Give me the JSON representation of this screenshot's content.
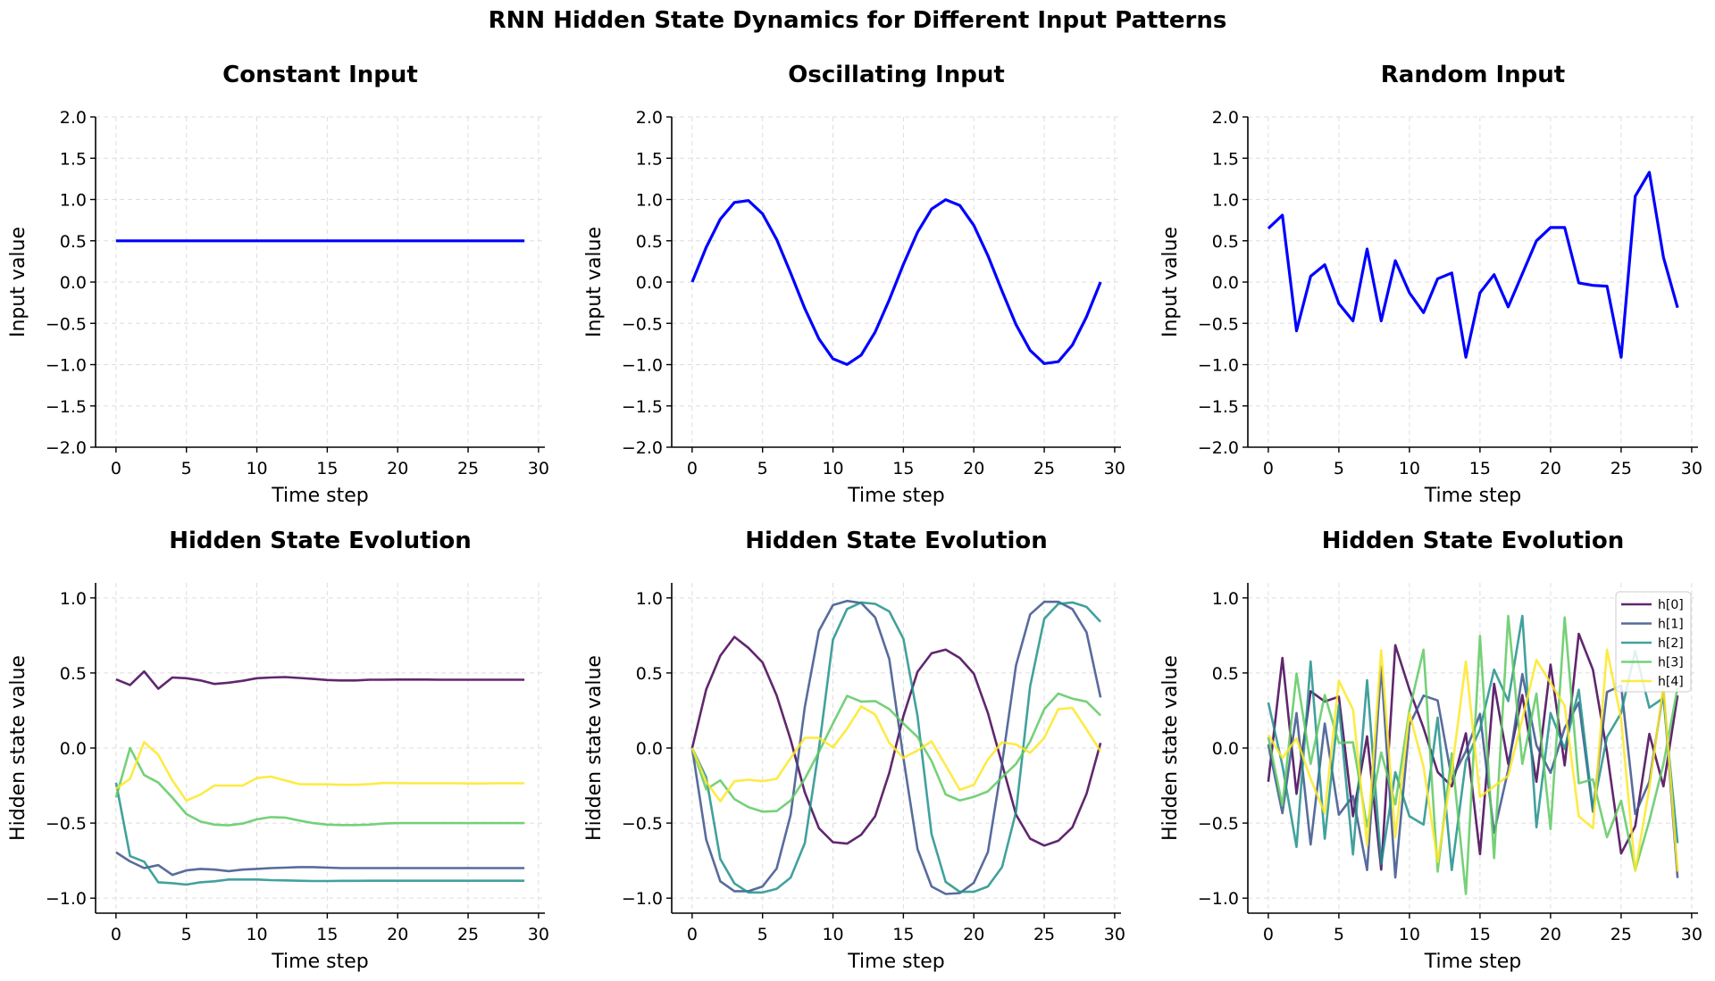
{
  "figure": {
    "title": "RNN Hidden State Dynamics for Different Input Patterns"
  },
  "colors": {
    "input_line": "#0000ff",
    "hidden": [
      "#440154",
      "#3b528b",
      "#21918c",
      "#5ec962",
      "#fde725"
    ],
    "grid": "#dddddd"
  },
  "chart_data": [
    {
      "type": "line",
      "title": "Constant Input",
      "xlabel": "Time step",
      "ylabel": "Input value",
      "xlim": [
        -1.45,
        30.45
      ],
      "ylim": [
        -2,
        2
      ],
      "xticks": [
        0,
        5,
        10,
        15,
        20,
        25,
        30
      ],
      "yticks": [
        2.0,
        1.5,
        1.0,
        0.5,
        0.0,
        -0.5,
        -1.0,
        -1.5,
        -2.0
      ],
      "grid": true,
      "series": [
        {
          "values": [
            0.5,
            0.5,
            0.5,
            0.5,
            0.5,
            0.5,
            0.5,
            0.5,
            0.5,
            0.5,
            0.5,
            0.5,
            0.5,
            0.5,
            0.5,
            0.5,
            0.5,
            0.5,
            0.5,
            0.5,
            0.5,
            0.5,
            0.5,
            0.5,
            0.5,
            0.5,
            0.5,
            0.5,
            0.5,
            0.5
          ]
        }
      ]
    },
    {
      "type": "line",
      "title": "Oscillating Input",
      "xlabel": "Time step",
      "ylabel": "Input value",
      "xlim": [
        -1.45,
        30.45
      ],
      "ylim": [
        -2,
        2
      ],
      "xticks": [
        0,
        5,
        10,
        15,
        20,
        25,
        30
      ],
      "yticks": [
        2.0,
        1.5,
        1.0,
        0.5,
        0.0,
        -0.5,
        -1.0,
        -1.5,
        -2.0
      ],
      "grid": true,
      "series": [
        {
          "values": [
            0,
            0.42,
            0.762,
            0.964,
            0.987,
            0.827,
            0.516,
            0.108,
            -0.32,
            -0.688,
            -0.929,
            -0.998,
            -0.884,
            -0.604,
            -0.215,
            0.215,
            0.604,
            0.884,
            0.998,
            0.929,
            0.688,
            0.32,
            -0.108,
            -0.516,
            -0.827,
            -0.987,
            -0.964,
            -0.762,
            -0.42,
            0
          ]
        }
      ]
    },
    {
      "type": "line",
      "title": "Random Input",
      "xlabel": "Time step",
      "ylabel": "Input value",
      "xlim": [
        -1.45,
        30.45
      ],
      "ylim": [
        -2,
        2
      ],
      "xticks": [
        0,
        5,
        10,
        15,
        20,
        25,
        30
      ],
      "yticks": [
        2.0,
        1.5,
        1.0,
        0.5,
        0.0,
        -0.5,
        -1.0,
        -1.5,
        -2.0
      ],
      "grid": true,
      "series": [
        {
          "values": [
            0.65,
            0.81,
            -0.59,
            0.07,
            0.21,
            -0.26,
            -0.47,
            0.4,
            -0.47,
            0.26,
            -0.13,
            -0.37,
            0.04,
            0.11,
            -0.91,
            -0.13,
            0.09,
            -0.3,
            0.1,
            0.5,
            0.66,
            0.66,
            -0.01,
            -0.04,
            -0.05,
            -0.91,
            1.04,
            1.33,
            0.3,
            -0.31
          ]
        }
      ]
    },
    {
      "type": "line",
      "title": "Hidden State Evolution",
      "xlabel": "Time step",
      "ylabel": "Hidden state value",
      "xlim": [
        -1.45,
        30.45
      ],
      "ylim": [
        -1.1,
        1.1
      ],
      "xticks": [
        0,
        5,
        10,
        15,
        20,
        25,
        30
      ],
      "yticks": [
        1.0,
        0.5,
        0.0,
        -0.5,
        -1.0
      ],
      "grid": true,
      "series": [
        {
          "values": [
            0.457,
            0.42,
            0.51,
            0.395,
            0.47,
            0.465,
            0.45,
            0.427,
            0.435,
            0.448,
            0.465,
            0.47,
            0.473,
            0.467,
            0.46,
            0.453,
            0.45,
            0.45,
            0.455,
            0.455,
            0.456,
            0.456,
            0.456,
            0.455,
            0.455,
            0.455,
            0.455,
            0.455,
            0.455,
            0.455
          ]
        },
        {
          "values": [
            -0.695,
            -0.755,
            -0.8,
            -0.78,
            -0.845,
            -0.815,
            -0.805,
            -0.81,
            -0.82,
            -0.81,
            -0.805,
            -0.8,
            -0.797,
            -0.793,
            -0.793,
            -0.797,
            -0.8,
            -0.8,
            -0.8,
            -0.8,
            -0.8,
            -0.8,
            -0.8,
            -0.8,
            -0.8,
            -0.8,
            -0.8,
            -0.8,
            -0.8,
            -0.8
          ]
        },
        {
          "values": [
            -0.23,
            -0.72,
            -0.757,
            -0.894,
            -0.9,
            -0.91,
            -0.894,
            -0.888,
            -0.876,
            -0.876,
            -0.876,
            -0.88,
            -0.882,
            -0.884,
            -0.886,
            -0.886,
            -0.885,
            -0.885,
            -0.884,
            -0.884,
            -0.884,
            -0.884,
            -0.884,
            -0.884,
            -0.884,
            -0.884,
            -0.884,
            -0.884,
            -0.884,
            -0.884
          ]
        },
        {
          "values": [
            -0.33,
            0.0,
            -0.18,
            -0.23,
            -0.33,
            -0.44,
            -0.49,
            -0.51,
            -0.515,
            -0.503,
            -0.475,
            -0.46,
            -0.463,
            -0.483,
            -0.5,
            -0.51,
            -0.513,
            -0.513,
            -0.51,
            -0.503,
            -0.5,
            -0.5,
            -0.5,
            -0.5,
            -0.5,
            -0.5,
            -0.5,
            -0.5,
            -0.5,
            -0.5
          ]
        },
        {
          "values": [
            -0.27,
            -0.205,
            0.04,
            -0.045,
            -0.215,
            -0.35,
            -0.31,
            -0.25,
            -0.25,
            -0.25,
            -0.2,
            -0.19,
            -0.215,
            -0.24,
            -0.242,
            -0.242,
            -0.245,
            -0.245,
            -0.24,
            -0.233,
            -0.233,
            -0.235,
            -0.235,
            -0.235,
            -0.235,
            -0.236,
            -0.236,
            -0.235,
            -0.235,
            -0.235
          ]
        }
      ]
    },
    {
      "type": "line",
      "title": "Hidden State Evolution",
      "xlabel": "Time step",
      "ylabel": "Hidden state value",
      "xlim": [
        -1.45,
        30.45
      ],
      "ylim": [
        -1.1,
        1.1
      ],
      "xticks": [
        0,
        5,
        10,
        15,
        20,
        25,
        30
      ],
      "yticks": [
        1.0,
        0.5,
        0.0,
        -0.5,
        -1.0
      ],
      "grid": true,
      "series": [
        {
          "values": [
            0,
            0.39,
            0.615,
            0.74,
            0.667,
            0.57,
            0.35,
            0.054,
            -0.295,
            -0.534,
            -0.627,
            -0.637,
            -0.578,
            -0.454,
            -0.165,
            0.213,
            0.508,
            0.631,
            0.655,
            0.6,
            0.496,
            0.233,
            -0.106,
            -0.444,
            -0.604,
            -0.65,
            -0.618,
            -0.528,
            -0.305,
            0.034
          ]
        },
        {
          "values": [
            0,
            -0.61,
            -0.888,
            -0.954,
            -0.954,
            -0.922,
            -0.803,
            -0.444,
            0.273,
            0.78,
            0.952,
            0.98,
            0.966,
            0.87,
            0.593,
            -0.066,
            -0.673,
            -0.922,
            -0.972,
            -0.966,
            -0.898,
            -0.693,
            -0.106,
            0.552,
            0.89,
            0.974,
            0.974,
            0.926,
            0.771,
            0.337
          ]
        },
        {
          "values": [
            0,
            -0.195,
            -0.739,
            -0.902,
            -0.962,
            -0.962,
            -0.938,
            -0.863,
            -0.633,
            -0.006,
            0.721,
            0.926,
            0.97,
            0.96,
            0.91,
            0.727,
            0.213,
            -0.574,
            -0.892,
            -0.958,
            -0.958,
            -0.922,
            -0.793,
            -0.424,
            0.412,
            0.861,
            0.96,
            0.97,
            0.94,
            0.841
          ]
        },
        {
          "values": [
            0,
            -0.275,
            -0.215,
            -0.34,
            -0.394,
            -0.424,
            -0.42,
            -0.349,
            -0.205,
            -0.026,
            0.163,
            0.347,
            0.309,
            0.313,
            0.259,
            0.163,
            0.074,
            -0.086,
            -0.309,
            -0.349,
            -0.325,
            -0.289,
            -0.195,
            -0.106,
            0.044,
            0.259,
            0.363,
            0.329,
            0.309,
            0.217
          ]
        },
        {
          "values": [
            0,
            -0.225,
            -0.355,
            -0.221,
            -0.211,
            -0.221,
            -0.205,
            -0.066,
            0.068,
            0.068,
            0.004,
            0.129,
            0.277,
            0.223,
            0.034,
            -0.066,
            -0.016,
            0.044,
            -0.116,
            -0.279,
            -0.245,
            -0.076,
            0.038,
            0.024,
            -0.032,
            0.068,
            0.259,
            0.267,
            0.124,
            -0.022
          ]
        }
      ]
    },
    {
      "type": "line",
      "title": "Hidden State Evolution",
      "xlabel": "Time step",
      "ylabel": "Hidden state value",
      "xlim": [
        -1.45,
        30.45
      ],
      "ylim": [
        -1.1,
        1.1
      ],
      "xticks": [
        0,
        5,
        10,
        15,
        20,
        25,
        30
      ],
      "yticks": [
        1.0,
        0.5,
        0.0,
        -0.5,
        -1.0
      ],
      "grid": true,
      "legend": "top-right",
      "series": [
        {
          "name": "h[0]",
          "values": [
            -0.225,
            0.6,
            -0.305,
            0.378,
            0.31,
            0.342,
            -0.454,
            0.078,
            -0.81,
            0.685,
            0.39,
            0.133,
            -0.16,
            -0.255,
            0.098,
            -0.707,
            0.428,
            -0.106,
            0.353,
            -0.225,
            0.556,
            -0.116,
            0.761,
            0.522,
            -0.026,
            -0.703,
            -0.52,
            0.094,
            -0.255,
            0.35
          ]
        },
        {
          "name": "h[1]",
          "values": [
            0.024,
            -0.434,
            0.233,
            -0.643,
            0.163,
            -0.444,
            -0.32,
            -0.813,
            0.542,
            -0.862,
            0.153,
            0.349,
            0.317,
            -0.205,
            -0.022,
            0.227,
            -0.564,
            -0.145,
            0.492,
            0.018,
            -0.165,
            0.133,
            0.303,
            -0.424,
            0.373,
            0.416,
            -0.44,
            -0.225,
            0.382,
            -0.866
          ]
        },
        {
          "name": "h[2]",
          "values": [
            0.303,
            -0.116,
            -0.659,
            0.576,
            -0.604,
            0.283,
            -0.709,
            0.452,
            -0.773,
            -0.161,
            -0.454,
            -0.51,
            0.203,
            -0.813,
            -0.086,
            0.124,
            0.522,
            0.313,
            0.88,
            -0.528,
            0.233,
            -0.006,
            0.388,
            -0.404,
            0.074,
            0.233,
            0.647,
            0.269,
            0.333,
            -0.633
          ]
        },
        {
          "name": "h[3]",
          "values": [
            0.074,
            -0.384,
            0.496,
            -0.106,
            0.353,
            0.034,
            0.038,
            -0.524,
            -0.03,
            -0.375,
            0.253,
            0.655,
            -0.823,
            -0.036,
            -0.972,
            0.747,
            -0.733,
            0.88,
            -0.106,
            0.363,
            -0.54,
            0.87,
            -0.235,
            -0.209,
            -0.594,
            -0.351,
            -0.813,
            -0.484,
            -0.106,
            0.402
          ]
        },
        {
          "name": "h[4]",
          "values": [
            0.088,
            -0.066,
            0.064,
            -0.205,
            -0.434,
            0.448,
            0.257,
            -0.647,
            0.651,
            -0.594,
            0.233,
            -0.125,
            -0.759,
            -0.155,
            0.576,
            -0.325,
            -0.255,
            -0.185,
            0.193,
            0.586,
            0.432,
            0.283,
            -0.454,
            -0.534,
            0.655,
            0.193,
            -0.819,
            -0.265,
            0.412,
            -0.823
          ]
        }
      ]
    }
  ]
}
